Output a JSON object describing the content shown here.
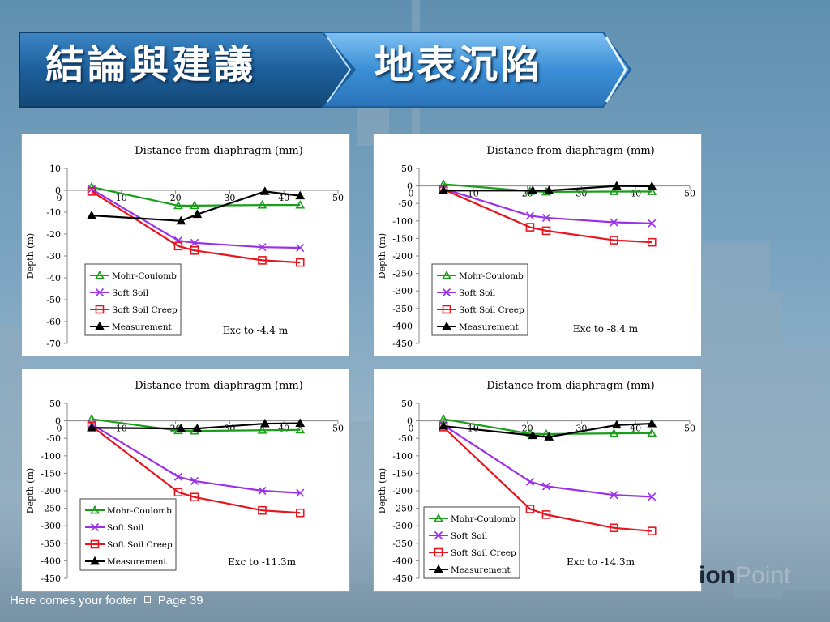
{
  "slide": {
    "title": "結論與建議",
    "subtitle": "地表沉陷",
    "footer": "Here comes your footer",
    "page": "Page 39",
    "brand_bold": "ion",
    "brand_light": "Point"
  },
  "colors": {
    "mohr": "#1a9e1a",
    "soft": "#9b30e8",
    "creep": "#e8141e",
    "meas": "#000000",
    "banner_dark": "#1d5f9c",
    "banner_light": "#3b8fd6"
  },
  "chart_data": [
    {
      "type": "line",
      "title": "Distance from diaphragm (mm)",
      "ylabel": "Depth (m)",
      "annotation": "Exc to -4.4 m",
      "xlim": [
        0,
        50
      ],
      "ylim": [
        -70,
        10
      ],
      "xticks": [
        0,
        10,
        20,
        30,
        40,
        50
      ],
      "yticks": [
        10,
        0,
        -10,
        -20,
        -30,
        -40,
        -50,
        -60,
        -70
      ],
      "legend_position": "bottom-left",
      "series": [
        {
          "name": "Mohr-Coulomb",
          "marker": "triangle",
          "color_key": "mohr",
          "x": [
            4.5,
            20.5,
            23.5,
            36,
            43
          ],
          "y": [
            1.5,
            -7,
            -7,
            -6.7,
            -6.7
          ]
        },
        {
          "name": "Soft Soil",
          "marker": "x",
          "color_key": "soft",
          "x": [
            4.5,
            20.5,
            23.5,
            36,
            43
          ],
          "y": [
            0.5,
            -23,
            -24,
            -26,
            -26.3
          ]
        },
        {
          "name": "Soft Soil Creep",
          "marker": "square",
          "color_key": "creep",
          "x": [
            4.5,
            20.5,
            23.5,
            36,
            43
          ],
          "y": [
            -0.5,
            -25.5,
            -27.5,
            -32,
            -33
          ]
        },
        {
          "name": "Measurement",
          "marker": "triangle",
          "color_key": "meas",
          "x": [
            4.5,
            21,
            24,
            36.5,
            43
          ],
          "y": [
            -11.5,
            -14,
            -11,
            -0.5,
            -2.5
          ]
        }
      ]
    },
    {
      "type": "line",
      "title": "Distance from diaphragm (mm)",
      "ylabel": "Depth (m)",
      "annotation": "Exc to -8.4 m",
      "xlim": [
        0,
        50
      ],
      "ylim": [
        -450,
        50
      ],
      "xticks": [
        0,
        10,
        20,
        30,
        40,
        50
      ],
      "yticks": [
        50,
        0,
        -50,
        -100,
        -150,
        -200,
        -250,
        -300,
        -350,
        -400,
        -450
      ],
      "legend_position": "bottom-left",
      "series": [
        {
          "name": "Mohr-Coulomb",
          "marker": "triangle",
          "color_key": "mohr",
          "x": [
            4.5,
            20.5,
            23.5,
            36,
            43
          ],
          "y": [
            5,
            -15,
            -17,
            -16,
            -16
          ]
        },
        {
          "name": "Soft Soil",
          "marker": "x",
          "color_key": "soft",
          "x": [
            4.5,
            20.5,
            23.5,
            36,
            43
          ],
          "y": [
            -8,
            -85,
            -91,
            -104,
            -107
          ]
        },
        {
          "name": "Soft Soil Creep",
          "marker": "square",
          "color_key": "creep",
          "x": [
            4.5,
            20.5,
            23.5,
            36,
            43
          ],
          "y": [
            -10,
            -118,
            -128,
            -155,
            -161
          ]
        },
        {
          "name": "Measurement",
          "marker": "triangle",
          "color_key": "meas",
          "x": [
            4.5,
            21,
            24,
            36.5,
            43
          ],
          "y": [
            -13,
            -13,
            -13,
            0,
            -1
          ]
        }
      ]
    },
    {
      "type": "line",
      "title": "Distance from diaphragm (mm)",
      "ylabel": "Depth (m)",
      "annotation": "Exc to -11.3m",
      "xlim": [
        0,
        50
      ],
      "ylim": [
        -450,
        50
      ],
      "xticks": [
        0,
        10,
        20,
        30,
        40,
        50
      ],
      "yticks": [
        50,
        0,
        -50,
        -100,
        -150,
        -200,
        -250,
        -300,
        -350,
        -400,
        -450
      ],
      "legend_position": "bottom-left",
      "series": [
        {
          "name": "Mohr-Coulomb",
          "marker": "triangle",
          "color_key": "mohr",
          "x": [
            4.5,
            20.5,
            23.5,
            36,
            43
          ],
          "y": [
            5,
            -28,
            -29,
            -27,
            -26
          ]
        },
        {
          "name": "Soft Soil",
          "marker": "x",
          "color_key": "soft",
          "x": [
            4.5,
            20.5,
            23.5,
            36,
            43
          ],
          "y": [
            -10,
            -160,
            -172,
            -200,
            -206
          ]
        },
        {
          "name": "Soft Soil Creep",
          "marker": "square",
          "color_key": "creep",
          "x": [
            4.5,
            20.5,
            23.5,
            36,
            43
          ],
          "y": [
            -15,
            -204,
            -218,
            -256,
            -263
          ]
        },
        {
          "name": "Measurement",
          "marker": "triangle",
          "color_key": "meas",
          "x": [
            4.5,
            21,
            24,
            36.5,
            43
          ],
          "y": [
            -20,
            -22,
            -22,
            -8,
            -7
          ]
        }
      ]
    },
    {
      "type": "line",
      "title": "Distance from diaphragm (mm)",
      "ylabel": "Depth (m)",
      "annotation": "Exc to -14.3m",
      "xlim": [
        0,
        50
      ],
      "ylim": [
        -450,
        50
      ],
      "xticks": [
        0,
        10,
        20,
        30,
        40,
        50
      ],
      "yticks": [
        50,
        0,
        -50,
        -100,
        -150,
        -200,
        -250,
        -300,
        -350,
        -400,
        -450
      ],
      "legend_position": "bottom-left",
      "series": [
        {
          "name": "Mohr-Coulomb",
          "marker": "triangle",
          "color_key": "mohr",
          "x": [
            4.5,
            20.5,
            23.5,
            36,
            43
          ],
          "y": [
            5,
            -37,
            -38,
            -36,
            -35
          ]
        },
        {
          "name": "Soft Soil",
          "marker": "x",
          "color_key": "soft",
          "x": [
            4.5,
            20.5,
            23.5,
            36,
            43
          ],
          "y": [
            -12,
            -174,
            -187,
            -212,
            -217
          ]
        },
        {
          "name": "Soft Soil Creep",
          "marker": "square",
          "color_key": "creep",
          "x": [
            4.5,
            20.5,
            23.5,
            36,
            43
          ],
          "y": [
            -18,
            -252,
            -268,
            -306,
            -315
          ]
        },
        {
          "name": "Measurement",
          "marker": "triangle",
          "color_key": "meas",
          "x": [
            4.5,
            21,
            24,
            36.5,
            43
          ],
          "y": [
            -15,
            -42,
            -46,
            -12,
            -8
          ]
        }
      ]
    }
  ]
}
